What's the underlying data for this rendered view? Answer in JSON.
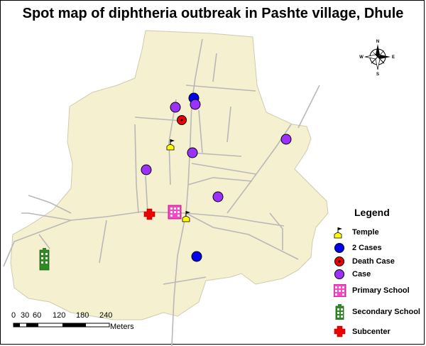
{
  "title": "Spot map of diphtheria outbreak in Pashte village, Dhule",
  "compass": {
    "n": "N",
    "e": "E",
    "s": "S",
    "w": "W"
  },
  "legend": {
    "title": "Legend",
    "items": [
      {
        "icon": "temple-icon",
        "label": "Temple",
        "color": "#ffff00"
      },
      {
        "icon": "blue-circle-icon",
        "label": "2 Cases",
        "color": "#0000ee"
      },
      {
        "icon": "death-case-icon",
        "label": "Death Case",
        "color": "#ee0000"
      },
      {
        "icon": "purple-circle-icon",
        "label": "Case",
        "color": "#9b30ff"
      },
      {
        "icon": "primary-school-icon",
        "label": "Primary School",
        "color": "#ff44cc"
      },
      {
        "icon": "secondary-school-icon",
        "label": "Secondary School",
        "color": "#2e8b22"
      },
      {
        "icon": "subcenter-icon",
        "label": "Subcenter",
        "color": "#ee0000"
      }
    ]
  },
  "scale": {
    "ticks": [
      "0",
      "30",
      "60",
      "120",
      "180",
      "240"
    ],
    "unit": "Meters"
  },
  "colors": {
    "land": "#f5f0d0",
    "road": "#b5b5b5",
    "boundary": "#c8c4a8"
  }
}
